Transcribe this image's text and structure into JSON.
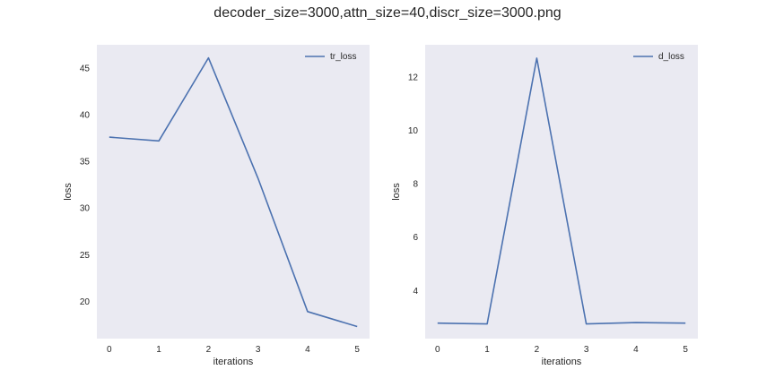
{
  "figure": {
    "title": "decoder_size=3000,attn_size=40,discr_size=3000.png"
  },
  "colors": {
    "plot_bg": "#eaeaf2",
    "line": "#4c72b0"
  },
  "chart_data": [
    {
      "type": "line",
      "title": "",
      "xlabel": "iterations",
      "ylabel": "loss",
      "x": [
        0,
        1,
        2,
        3,
        4,
        5
      ],
      "xticks": [
        "0",
        "1",
        "2",
        "3",
        "4",
        "5"
      ],
      "yticks": [
        "20",
        "25",
        "30",
        "35",
        "40",
        "45"
      ],
      "xlim": [
        -0.25,
        5.25
      ],
      "ylim": [
        16.0,
        47.5
      ],
      "grid": false,
      "legend_position": "top-right",
      "series": [
        {
          "name": "tr_loss",
          "values": [
            37.6,
            37.2,
            46.1,
            33.2,
            18.9,
            17.3
          ]
        }
      ]
    },
    {
      "type": "line",
      "title": "",
      "xlabel": "iterations",
      "ylabel": "loss",
      "x": [
        0,
        1,
        2,
        3,
        4,
        5
      ],
      "xticks": [
        "0",
        "1",
        "2",
        "3",
        "4",
        "5"
      ],
      "yticks": [
        "4",
        "6",
        "8",
        "10",
        "12"
      ],
      "xlim": [
        -0.25,
        5.25
      ],
      "ylim": [
        2.2,
        13.2
      ],
      "grid": false,
      "legend_position": "top-right",
      "series": [
        {
          "name": "d_loss",
          "values": [
            2.78,
            2.75,
            12.7,
            2.75,
            2.8,
            2.78
          ]
        }
      ]
    }
  ]
}
